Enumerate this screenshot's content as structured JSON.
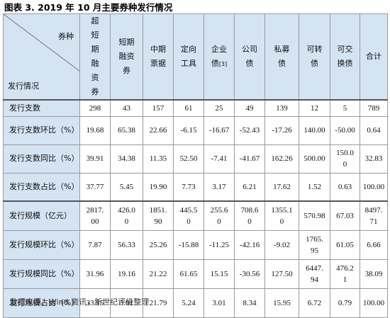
{
  "title": "图表 3. 2019 年 10 月主要券种发行情况",
  "corner": {
    "top": "券种",
    "bottom": "发行情况"
  },
  "columns": [
    "超短期融资券",
    "短期融资券",
    "中期票据",
    "定向工具",
    "企业债",
    "公司债",
    "私募债",
    "可转债",
    "可交换债",
    "合计"
  ],
  "enterprise_note": "[3]",
  "rows": [
    {
      "label": "发行支数",
      "values": [
        "298",
        "43",
        "157",
        "61",
        "25",
        "49",
        "139",
        "12",
        "5",
        "789"
      ]
    },
    {
      "label": "发行支数环比（%）",
      "values": [
        "19.68",
        "65.38",
        "22.66",
        "-6.15",
        "-16.67",
        "-52.43",
        "-17.26",
        "140.00",
        "-50.00",
        "0.64"
      ]
    },
    {
      "label": "发行支数同比（%）",
      "values": [
        "39.91",
        "34.38",
        "11.35",
        "52.50",
        "-7.41",
        "-41.67",
        "162.26",
        "500.00",
        "150.00",
        "32.83"
      ]
    },
    {
      "label": "发行支数占比（%）",
      "values": [
        "37.77",
        "5.45",
        "19.90",
        "7.73",
        "3.17",
        "6.21",
        "17.62",
        "1.52",
        "0.63",
        "100.00"
      ]
    },
    {
      "label": "发行规模（亿元）",
      "values": [
        "2817.00",
        "426.00",
        "1851.90",
        "445.50",
        "255.60",
        "708.60",
        "1355.10",
        "570.98",
        "67.03",
        "8497.71"
      ]
    },
    {
      "label": "发行规模环比（%）",
      "values": [
        "7.87",
        "56.33",
        "25.26",
        "-15.88",
        "-11.25",
        "-42.16",
        "-9.02",
        "1765.95",
        "61.05",
        "6.66"
      ]
    },
    {
      "label": "发行规模同比（%）",
      "values": [
        "31.96",
        "19.16",
        "21.22",
        "61.65",
        "15.15",
        "-30.56",
        "127.50",
        "6447.94",
        "476.21",
        "38.09"
      ]
    },
    {
      "label": "发行规模占比（%）",
      "values": [
        "33.15",
        "5.01",
        "21.79",
        "5.24",
        "3.01",
        "8.34",
        "15.95",
        "6.72",
        "0.79",
        "100.00"
      ]
    }
  ],
  "footer": "数据来源：Wind 资讯，新世纪评级整理"
}
